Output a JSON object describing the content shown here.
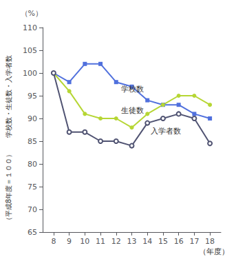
{
  "chart_data": {
    "type": "line",
    "x": [
      8,
      9,
      10,
      11,
      12,
      13,
      14,
      15,
      16,
      17,
      18
    ],
    "series": [
      {
        "name": "学校数",
        "marker": "square",
        "values": [
          100,
          98,
          102,
          102,
          98,
          97,
          94,
          93,
          93,
          91,
          90
        ]
      },
      {
        "name": "生徒数",
        "marker": "circle",
        "values": [
          100,
          96,
          91,
          90,
          90,
          88,
          91,
          93,
          95,
          95,
          93
        ]
      },
      {
        "name": "入学者数",
        "marker": "open_circle",
        "values": [
          100,
          87,
          87,
          85,
          85,
          84,
          89,
          90,
          91,
          90,
          84.5
        ]
      }
    ],
    "annotations": [
      {
        "text": "学校数",
        "x": 12.3,
        "y": 96.5
      },
      {
        "text": "生徒数",
        "x": 12.3,
        "y": 91.8
      },
      {
        "text": "入学者数",
        "x": 14.2,
        "y": 87.2
      }
    ],
    "xlabel": "（年度）",
    "ylabel": [
      "学校数・生徒数・入学者数",
      "（平成8年度＝１００）"
    ],
    "ylabel_unit": "（%）",
    "xlim": [
      7.3,
      18.7
    ],
    "xticks": [
      8,
      9,
      10,
      11,
      12,
      13,
      14,
      15,
      16,
      17,
      18
    ],
    "ylim": [
      65,
      110
    ],
    "yticks": [
      65,
      70,
      75,
      80,
      85,
      90,
      95,
      100,
      105,
      110
    ],
    "grid": false
  }
}
